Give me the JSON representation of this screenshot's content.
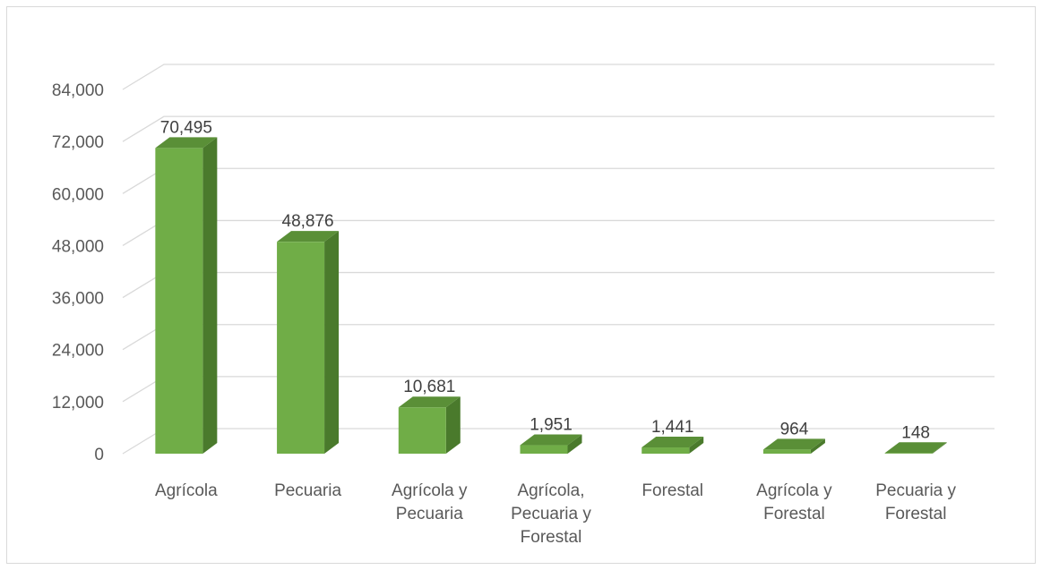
{
  "chart_data": {
    "type": "bar",
    "style": "3d-column",
    "categories": [
      [
        "Agrícola"
      ],
      [
        "Pecuaria"
      ],
      [
        "Agrícola y",
        "Pecuaria"
      ],
      [
        "Agrícola,",
        "Pecuaria y",
        "Forestal"
      ],
      [
        "Forestal"
      ],
      [
        "Agrícola y",
        "Forestal"
      ],
      [
        "Pecuaria y",
        "Forestal"
      ]
    ],
    "values": [
      70495,
      48876,
      10681,
      1951,
      1441,
      964,
      148
    ],
    "value_labels": [
      "70,495",
      "48,876",
      "10,681",
      "1,951",
      "1,441",
      "964",
      "148"
    ],
    "yticks": [
      "0",
      "12,000",
      "24,000",
      "36,000",
      "48,000",
      "60,000",
      "72,000",
      "84,000"
    ],
    "ylim": [
      0,
      84000
    ],
    "grid": true,
    "legend": "none",
    "colors": {
      "front": "#70ad47",
      "side": "#4a7a2c",
      "top": "#5a8f37",
      "grid": "#d9d9d9"
    }
  }
}
